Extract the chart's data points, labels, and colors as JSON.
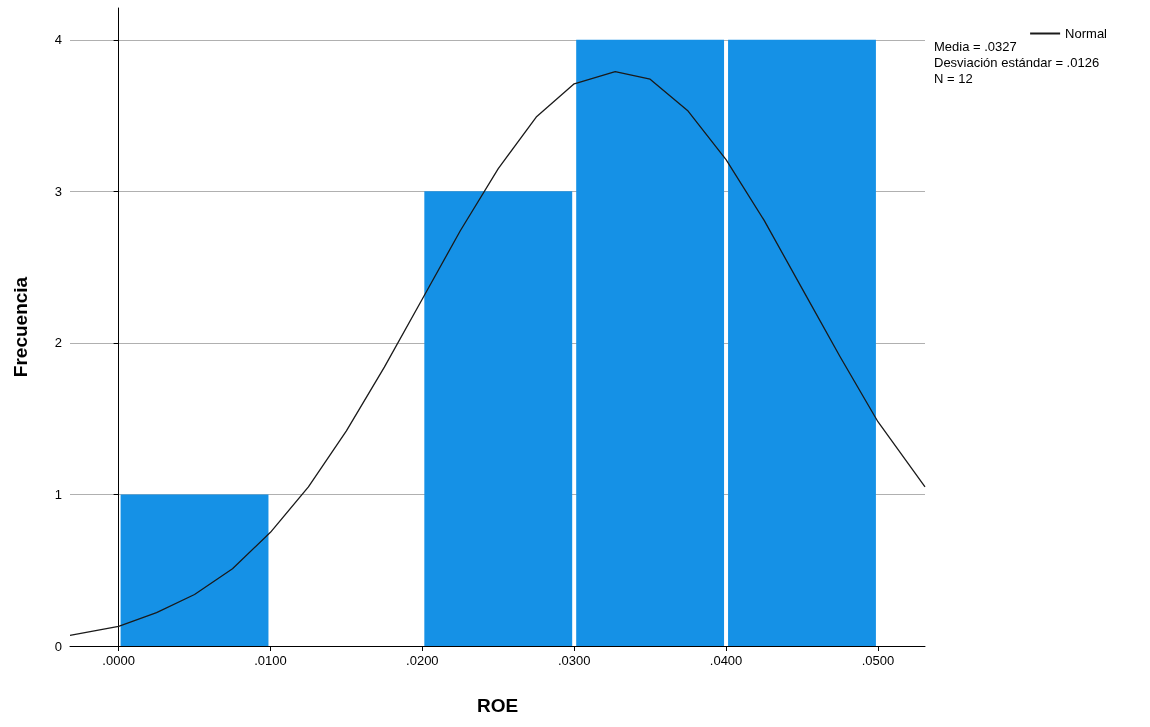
{
  "chart_data": {
    "type": "histogram",
    "xlabel": "ROE",
    "ylabel": "Frecuencia",
    "bins": [
      0,
      0.01,
      0.02,
      0.03,
      0.04,
      0.05
    ],
    "values": [
      1,
      0,
      3,
      4,
      4
    ],
    "color": "#1591e6",
    "series": [
      {
        "type": "line",
        "name": "Normal",
        "color": "#1a1a1a",
        "x": [
          -0.0032,
          0,
          0.0025,
          0.005,
          0.0075,
          0.01,
          0.0125,
          0.015,
          0.0175,
          0.02,
          0.0225,
          0.025,
          0.0275,
          0.03,
          0.0327,
          0.035,
          0.0375,
          0.04,
          0.0425,
          0.045,
          0.0475,
          0.05,
          0.0531
        ],
        "values": [
          0.07,
          0.13,
          0.22,
          0.34,
          0.51,
          0.75,
          1.05,
          1.42,
          1.84,
          2.29,
          2.74,
          3.15,
          3.49,
          3.71,
          3.79,
          3.74,
          3.53,
          3.21,
          2.81,
          2.36,
          1.91,
          1.48,
          1.05
        ]
      }
    ],
    "xlim": [
      -0.0032,
      0.0531
    ],
    "xticks": [
      {
        "value": 0,
        "label": ".0000"
      },
      {
        "value": 0.01,
        "label": ".0100"
      },
      {
        "value": 0.02,
        "label": ".0200"
      },
      {
        "value": 0.03,
        "label": ".0300"
      },
      {
        "value": 0.04,
        "label": ".0400"
      },
      {
        "value": 0.05,
        "label": ".0500"
      }
    ],
    "ylim": [
      0,
      4.21
    ],
    "yticks": [
      0,
      1,
      2,
      3,
      4
    ],
    "grid": "y",
    "legend": "top right",
    "marker": "none",
    "annotations": [
      "Media = .0327",
      "Desviación estándar = .0126",
      "N = 12"
    ]
  }
}
